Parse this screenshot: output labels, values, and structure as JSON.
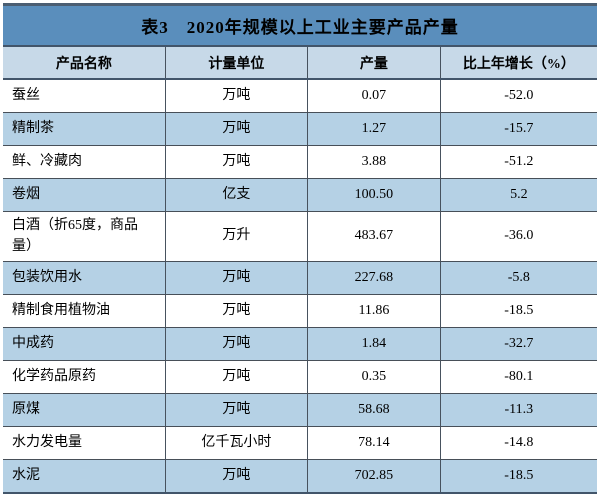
{
  "chart_data": {
    "type": "table",
    "title": "表3　2020年规模以上工业主要产品产量",
    "columns": [
      "产品名称",
      "计量单位",
      "产量",
      "比上年增长（%）"
    ],
    "rows": [
      [
        "蚕丝",
        "万吨",
        "0.07",
        "-52.0"
      ],
      [
        "精制茶",
        "万吨",
        "1.27",
        "-15.7"
      ],
      [
        "鲜、冷藏肉",
        "万吨",
        "3.88",
        "-51.2"
      ],
      [
        "卷烟",
        "亿支",
        "100.50",
        "5.2"
      ],
      [
        "白酒（折65度，商品量）",
        "万升",
        "483.67",
        "-36.0"
      ],
      [
        "包装饮用水",
        "万吨",
        "227.68",
        "-5.8"
      ],
      [
        "精制食用植物油",
        "万吨",
        "11.86",
        "-18.5"
      ],
      [
        "中成药",
        "万吨",
        "1.84",
        "-32.7"
      ],
      [
        "化学药品原药",
        "万吨",
        "0.35",
        "-80.1"
      ],
      [
        "原煤",
        "万吨",
        "58.68",
        "-11.3"
      ],
      [
        "水力发电量",
        "亿千瓦小时",
        "78.14",
        "-14.8"
      ],
      [
        "水泥",
        "万吨",
        "702.85",
        "-18.5"
      ]
    ],
    "colors": {
      "title_bg": "#5a8ebc",
      "header_bg": "#c7d9e8",
      "row_alt_bg": "#b5d1e5",
      "row_bg": "#ffffff",
      "border_dark": "#42556a",
      "text": "#000000"
    }
  }
}
